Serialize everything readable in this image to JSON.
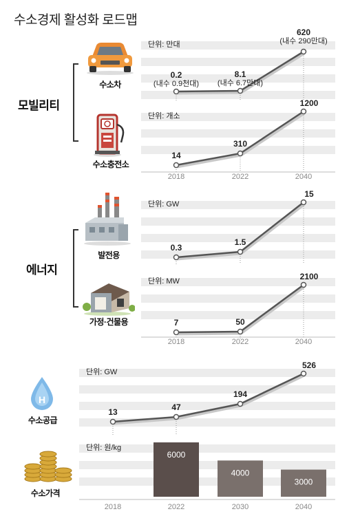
{
  "title": "수소경제 활성화 로드맵",
  "colors": {
    "stripe": "#ececec",
    "line": "#555555",
    "point_fill": "#ffffff",
    "bar_dark": "#5a4e4b",
    "bar_light": "#7a706c",
    "axis_text": "#888888"
  },
  "sections": {
    "mobility": {
      "label": "모빌리티"
    },
    "energy": {
      "label": "에너지"
    }
  },
  "icons": {
    "car": {
      "label": "수소차",
      "icon": "car-icon"
    },
    "station": {
      "label": "수소충전소",
      "icon": "fuel-pump-icon"
    },
    "power": {
      "label": "발전용",
      "icon": "power-plant-icon"
    },
    "building": {
      "label": "가정·건물용",
      "icon": "house-icon"
    },
    "supply": {
      "label": "수소공급",
      "icon": "water-drop-icon"
    },
    "price": {
      "label": "수소가격",
      "icon": "coins-icon"
    }
  },
  "chart_data": [
    {
      "type": "line",
      "unit": "단위: 만대",
      "x": [
        "2018",
        "2022",
        "2040"
      ],
      "values": [
        0.2,
        8.1,
        620
      ],
      "labels": [
        "0.2",
        "8.1",
        "620"
      ],
      "sublabels": [
        "(내수 0.9천대)",
        "(내수 6.7만대)",
        "(내수 290만대)"
      ]
    },
    {
      "type": "line",
      "unit": "단위: 개소",
      "x": [
        "2018",
        "2022",
        "2040"
      ],
      "values": [
        14,
        310,
        1200
      ],
      "labels": [
        "14",
        "310",
        "1200"
      ],
      "xticks": [
        "2018",
        "2022",
        "2040"
      ]
    },
    {
      "type": "line",
      "unit": "단위: GW",
      "x": [
        "2018",
        "2022",
        "2040"
      ],
      "values": [
        0.3,
        1.5,
        15
      ],
      "labels": [
        "0.3",
        "1.5",
        "15"
      ]
    },
    {
      "type": "line",
      "unit": "단위: MW",
      "x": [
        "2018",
        "2022",
        "2040"
      ],
      "values": [
        7,
        50,
        2100
      ],
      "labels": [
        "7",
        "50",
        "2100"
      ],
      "xticks": [
        "2018",
        "2022",
        "2040"
      ]
    },
    {
      "type": "line",
      "unit": "단위: GW",
      "x": [
        "2018",
        "2022",
        "2030",
        "2040"
      ],
      "values": [
        13,
        47,
        194,
        526
      ],
      "labels": [
        "13",
        "47",
        "194",
        "526"
      ]
    },
    {
      "type": "bar",
      "unit": "단위: 원/kg",
      "categories": [
        "2018",
        "2022",
        "2030",
        "2040"
      ],
      "values": [
        null,
        6000,
        4000,
        3000
      ],
      "labels": [
        "",
        "6000",
        "4000",
        "3000"
      ],
      "xticks": [
        "2018",
        "2022",
        "2030",
        "2040"
      ]
    }
  ]
}
